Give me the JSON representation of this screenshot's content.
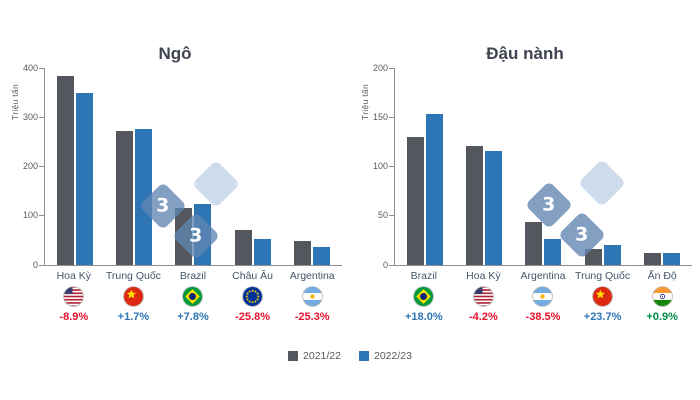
{
  "page": {
    "background": "#ffffff"
  },
  "watermark": {
    "glyph": "3"
  },
  "legend": {
    "items": [
      {
        "label": "2021/22",
        "color": "#54575d"
      },
      {
        "label": "2022/23",
        "color": "#2e75b6"
      }
    ]
  },
  "colors": {
    "series_2021_22": "#54575d",
    "series_2022_23": "#2e75b6",
    "positive_change": "#2e75b6",
    "negative_change": "#e8112d",
    "axis": "#8f8f8f"
  },
  "chart_data": [
    {
      "type": "bar",
      "title": "Ngô",
      "ylabel": "Triệu tấn",
      "ylim": [
        0,
        400
      ],
      "yticks": [
        0,
        100,
        200,
        300,
        400
      ],
      "grid": false,
      "legend_position": "bottom",
      "categories": [
        "Hoa Kỳ",
        "Trung Quốc",
        "Brazil",
        "Châu Âu",
        "Argentina"
      ],
      "flags": [
        "flag-usa",
        "flag-china",
        "flag-brazil",
        "flag-eu",
        "flag-argentina"
      ],
      "series": [
        {
          "name": "2021/22",
          "color": "#54575d",
          "values": [
            383.9,
            272.6,
            116,
            70.9,
            49.5
          ]
        },
        {
          "name": "2022/23",
          "color": "#2e75b6",
          "values": [
            349.6,
            277.2,
            125,
            52.6,
            37
          ]
        }
      ],
      "changes": [
        {
          "text": "-8.9%",
          "color": "#e8112d"
        },
        {
          "text": "+1.7%",
          "color": "#2e75b6"
        },
        {
          "text": "+7.8%",
          "color": "#2e75b6"
        },
        {
          "text": "-25.8%",
          "color": "#e8112d"
        },
        {
          "text": "-25.3%",
          "color": "#e8112d"
        }
      ]
    },
    {
      "type": "bar",
      "title": "Đậu nành",
      "ylabel": "Triệu tấn",
      "ylim": [
        0,
        200
      ],
      "yticks": [
        0,
        50,
        100,
        150,
        200
      ],
      "grid": false,
      "legend_position": "bottom",
      "categories": [
        "Brazil",
        "Hoa Kỳ",
        "Argentina",
        "Trung Quốc",
        "Ấn Độ"
      ],
      "flags": [
        "flag-brazil",
        "flag-usa",
        "flag-argentina",
        "flag-china",
        "flag-india"
      ],
      "series": [
        {
          "name": "2021/22",
          "color": "#54575d",
          "values": [
            130,
            121.5,
            43.9,
            16.4,
            11.9
          ]
        },
        {
          "name": "2022/23",
          "color": "#2e75b6",
          "values": [
            153.4,
            116.4,
            27,
            20.3,
            12
          ]
        }
      ],
      "changes": [
        {
          "text": "+18.0%",
          "color": "#2e75b6"
        },
        {
          "text": "-4.2%",
          "color": "#e8112d"
        },
        {
          "text": "-38.5%",
          "color": "#e8112d"
        },
        {
          "text": "+23.7%",
          "color": "#2e75b6"
        },
        {
          "text": "+0.9%",
          "color": "#008b45"
        }
      ]
    }
  ]
}
